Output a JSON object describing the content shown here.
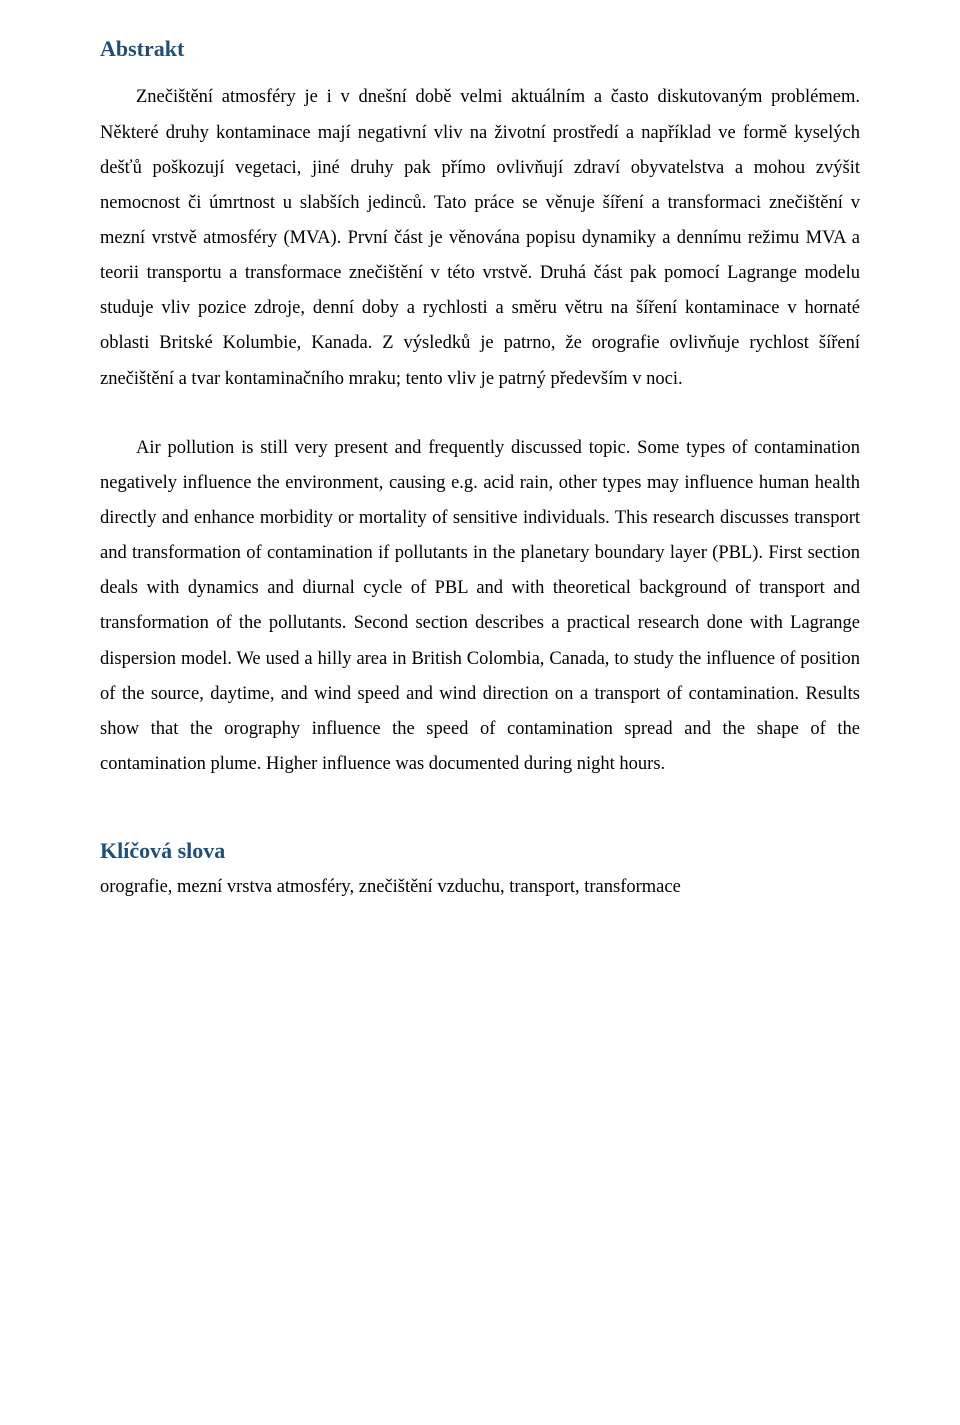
{
  "headings": {
    "abstract": "Abstrakt",
    "keywords": "Klíčová slova"
  },
  "paragraphs": {
    "p1": "Znečištění atmosféry je i v dnešní době velmi aktuálním a často diskutovaným problémem. Některé druhy kontaminace mají negativní vliv na životní prostředí a například ve formě kyselých dešťů poškozují vegetaci, jiné druhy pak přímo ovlivňují zdraví obyvatelstva a mohou zvýšit nemocnost či úmrtnost u slabších jedinců. Tato práce se věnuje šíření a transformaci znečištění v mezní vrstvě atmosféry (MVA). První část je věnována popisu dynamiky a dennímu režimu MVA a teorii transportu a transformace znečištění v této vrstvě. Druhá část pak pomocí Lagrange modelu studuje vliv pozice zdroje, denní doby a rychlosti a směru větru na šíření kontaminace v hornaté oblasti Britské Kolumbie, Kanada. Z výsledků je patrno, že orografie ovlivňuje rychlost šíření znečištění a tvar kontaminačního mraku; tento vliv je patrný především v noci.",
    "p2": "Air pollution is still very present and frequently discussed topic. Some types of contamination negatively influence the environment, causing e.g. acid rain, other types may influence human health directly and enhance morbidity or mortality of sensitive individuals. This research discusses transport and transformation of contamination if pollutants in the planetary boundary layer (PBL). First section deals with dynamics and diurnal cycle of PBL and with theoretical background of transport and transformation of the pollutants. Second section describes a practical research done with Lagrange dispersion model. We used a hilly area in British Colombia, Canada, to study the influence of position of the source, daytime, and wind speed and wind direction on a transport of contamination. Results show that the orography influence the speed of contamination spread and the shape of the contamination plume. Higher influence was documented during night hours.",
    "keywords": "orografie, mezní vrstva atmosféry, znečištění vzduchu, transport, transformace"
  },
  "colors": {
    "heading": "#1f4e79",
    "text": "#000000",
    "background": "#ffffff"
  },
  "typography": {
    "body_font": "Times New Roman",
    "body_size_pt": 14,
    "heading_size_pt": 16
  }
}
